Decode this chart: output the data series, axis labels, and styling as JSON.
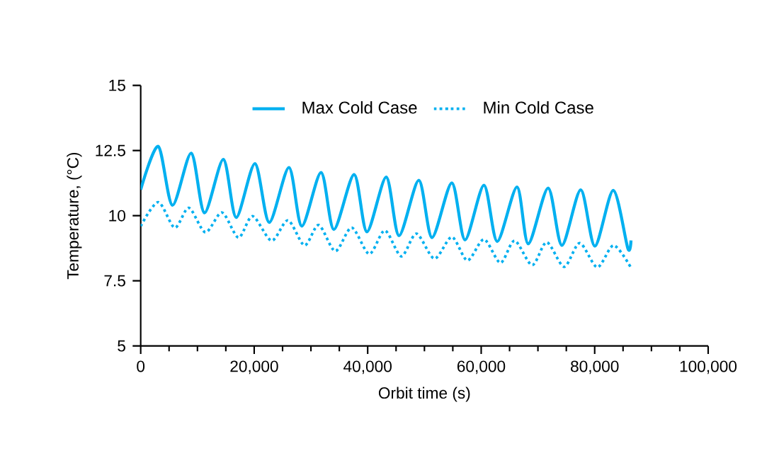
{
  "chart_data": {
    "type": "line",
    "xlabel": "Orbit time (s)",
    "ylabel": "Temperature, (°C)",
    "xlim": [
      0,
      100000
    ],
    "ylim": [
      5,
      15
    ],
    "xticks": [
      0,
      {
        "value": 20000,
        "label": "20,000"
      },
      {
        "value": 40000,
        "label": "40,000"
      },
      {
        "value": 60000,
        "label": "60,000"
      },
      {
        "value": 80000,
        "label": "80,000"
      },
      {
        "value": 100000,
        "label": "100,000"
      }
    ],
    "yticks": [
      5,
      7.5,
      10,
      12.5,
      15
    ],
    "grid": false,
    "legend": "top",
    "marker": "none",
    "series": [
      {
        "name": "Max Cold Case",
        "color": "#00b0f0",
        "line_style": "solid",
        "x": [
          0,
          3090,
          5590,
          8910,
          11230,
          14570,
          16820,
          20140,
          22640,
          26130,
          28380,
          31790,
          34040,
          37610,
          39860,
          43270,
          45520,
          49010,
          51330,
          54830,
          57150,
          60490,
          62820,
          66310,
          68300,
          71800,
          74220,
          77540,
          80030,
          83280,
          85850,
          86400
        ],
        "values": [
          11.0,
          12.66,
          10.4,
          12.4,
          10.11,
          12.16,
          9.93,
          12.0,
          9.74,
          11.85,
          9.6,
          11.66,
          9.47,
          11.58,
          9.38,
          11.48,
          9.23,
          11.36,
          9.16,
          11.26,
          9.07,
          11.17,
          9.01,
          11.1,
          8.92,
          11.06,
          8.86,
          10.99,
          8.83,
          10.97,
          8.74,
          9.05
        ]
      },
      {
        "name": "Min Cold Case",
        "color": "#00b0f0",
        "line_style": "dotted",
        "x": [
          0,
          3090,
          5990,
          8490,
          11400,
          14330,
          17220,
          19720,
          23060,
          25950,
          28870,
          31370,
          34290,
          37190,
          40280,
          43030,
          45920,
          48590,
          51760,
          54830,
          57570,
          60490,
          63390,
          65890,
          68980,
          71550,
          74620,
          77360,
          80460,
          83350,
          86400
        ],
        "values": [
          9.6,
          10.52,
          9.54,
          10.3,
          9.36,
          10.12,
          9.16,
          9.98,
          9.04,
          9.82,
          8.86,
          9.64,
          8.64,
          9.54,
          8.53,
          9.43,
          8.44,
          9.31,
          8.35,
          9.18,
          8.28,
          9.09,
          8.19,
          9.04,
          8.1,
          8.98,
          8.04,
          8.95,
          8.02,
          8.86,
          8.0
        ]
      }
    ]
  }
}
